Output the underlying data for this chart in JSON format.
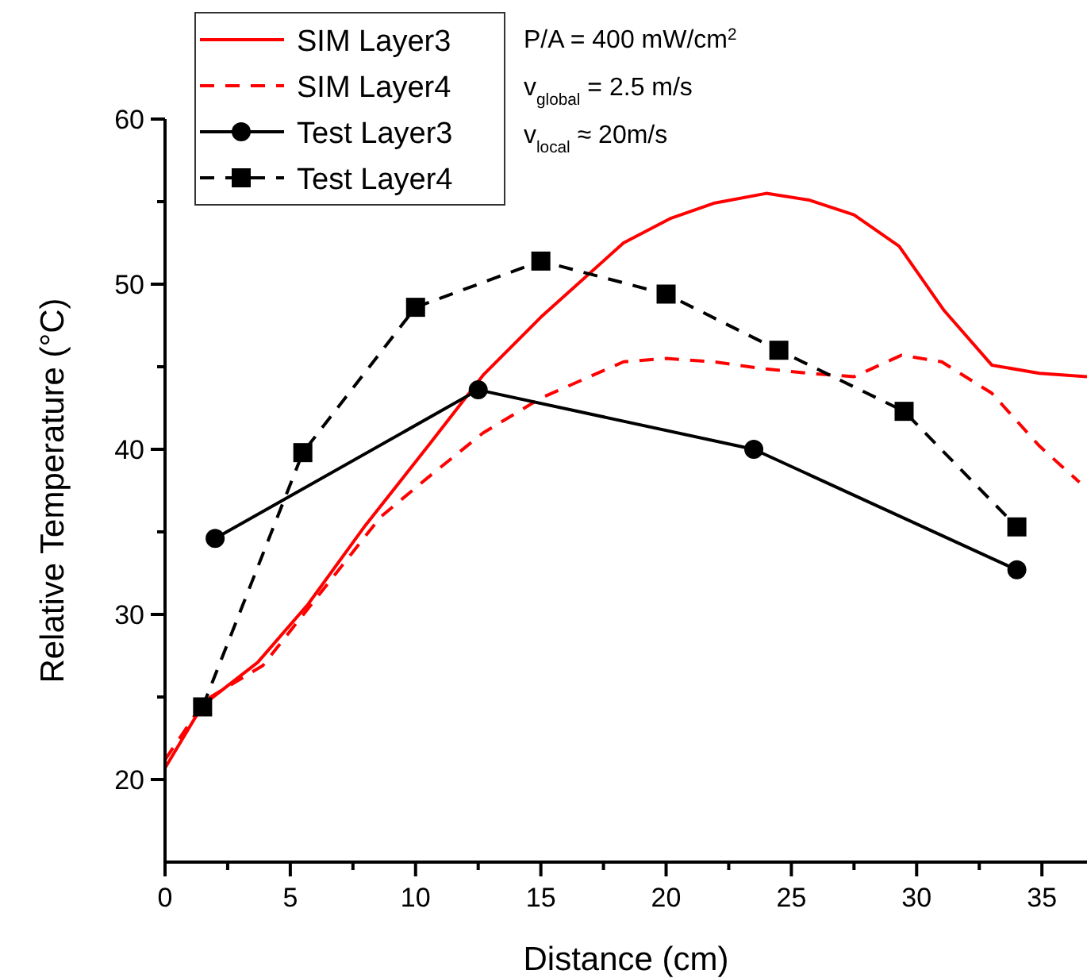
{
  "chart_data": {
    "type": "line",
    "xlabel": "Distance (cm)",
    "ylabel": "Relative Temperature (°C)",
    "xlim": [
      0,
      36.8
    ],
    "ylim": [
      15,
      60
    ],
    "xticks": [
      0,
      {
        "value": 2.5,
        "label": null
      },
      5,
      {
        "value": 7.5,
        "label": null
      },
      10,
      {
        "value": 12.5,
        "label": null
      },
      15,
      {
        "value": 17.5,
        "label": null
      },
      20,
      {
        "value": 22.5,
        "label": null
      },
      25,
      {
        "value": 27.5,
        "label": null
      },
      30,
      {
        "value": 32.5,
        "label": null
      },
      35
    ],
    "yticks": [
      20,
      {
        "value": 25,
        "label": null
      },
      30,
      {
        "value": 35,
        "label": null
      },
      40,
      {
        "value": 45,
        "label": null
      },
      50,
      {
        "value": 55,
        "label": null
      },
      60
    ],
    "legend": "top left",
    "grid": false,
    "annotations": [
      "P/A = 400 mW/cm$^{2}$",
      "v$_{global}$ = 2.5 m/s",
      "v$_{local}$ ≈ 20m/s"
    ],
    "series": [
      {
        "name": "SIM Layer3",
        "color": "#ff0000",
        "line_style": "solid",
        "marker": "none",
        "x": [
          0,
          1.5,
          3.7,
          5.7,
          8,
          10.5,
          12.7,
          15,
          18.3,
          20.2,
          21.9,
          24,
          25.7,
          27.5,
          29.3,
          31.1,
          33,
          34.9,
          36.8
        ],
        "values": [
          20.7,
          24.5,
          27.1,
          30.6,
          35.4,
          40.2,
          44.5,
          48,
          52.5,
          54,
          54.9,
          55.5,
          55.1,
          54.2,
          52.3,
          48.4,
          45.1,
          44.6,
          44.4
        ]
      },
      {
        "name": "SIM Layer4",
        "color": "#ff0000",
        "line_style": "dashed",
        "marker": "none",
        "x": [
          0,
          1.6,
          3.9,
          6.1,
          8.6,
          10.5,
          12.7,
          15,
          18.3,
          20,
          21.9,
          23.8,
          25.7,
          27.5,
          29.4,
          31,
          33,
          34.9,
          36.5
        ],
        "values": [
          21.2,
          24.8,
          26.9,
          31.1,
          35.9,
          38.3,
          41,
          43.1,
          45.3,
          45.5,
          45.3,
          44.9,
          44.6,
          44.4,
          45.7,
          45.3,
          43.4,
          40.2,
          38
        ]
      },
      {
        "name": "Test Layer3",
        "color": "#000000",
        "line_style": "solid",
        "marker": "circle",
        "x": [
          2,
          12.5,
          23.5,
          34
        ],
        "values": [
          34.6,
          43.6,
          40,
          32.7
        ]
      },
      {
        "name": "Test Layer4",
        "color": "#000000",
        "line_style": "dashed",
        "marker": "square",
        "x": [
          1.5,
          5.5,
          10,
          15,
          20,
          24.5,
          29.5,
          34
        ],
        "values": [
          24.4,
          39.8,
          48.6,
          51.4,
          49.4,
          46,
          42.3,
          35.3
        ]
      }
    ]
  }
}
